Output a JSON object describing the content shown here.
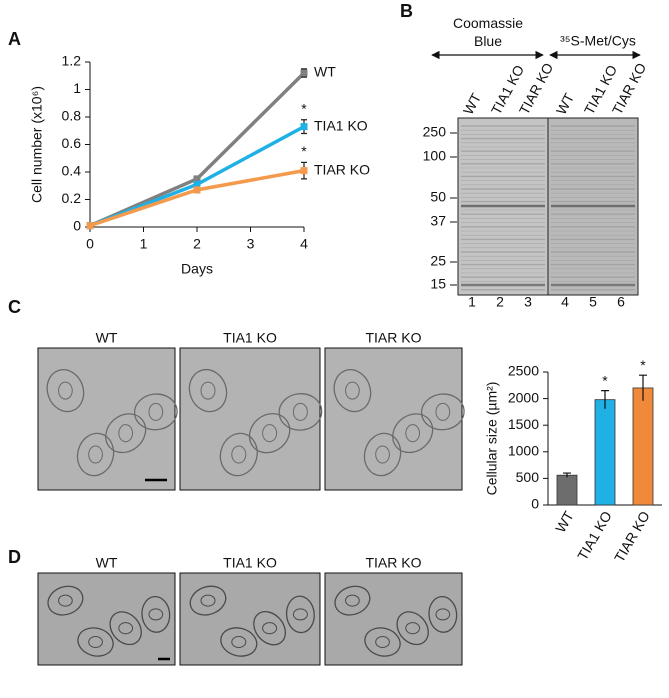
{
  "panels": [
    "A",
    "B",
    "C",
    "D"
  ],
  "chart_data": [
    {
      "type": "line",
      "xlabel": "Days",
      "ylabel": "Cell number (x10⁶)",
      "x": [
        0,
        2,
        4
      ],
      "xlim": [
        0,
        4
      ],
      "xticks": [
        0,
        1,
        2,
        3,
        4
      ],
      "ylim": [
        0,
        1.2
      ],
      "yticks": [
        0,
        0.2,
        0.4,
        0.6,
        0.8,
        1,
        1.2
      ],
      "series": [
        {
          "name": "WT",
          "color": "#808080",
          "values": [
            0.01,
            0.35,
            1.12
          ],
          "errors": [
            0.01,
            0.02,
            0.03
          ]
        },
        {
          "name": "TIA1 KO",
          "color": "#1fb1e6",
          "values": [
            0.01,
            0.31,
            0.73
          ],
          "errors": [
            0.01,
            0.02,
            0.05
          ]
        },
        {
          "name": "TIAR KO",
          "color": "#f39a4c",
          "values": [
            0.01,
            0.27,
            0.41
          ],
          "errors": [
            0.01,
            0.02,
            0.06
          ]
        }
      ],
      "annotations": [
        "*",
        "*"
      ]
    },
    {
      "type": "bar",
      "ylabel": "Cellular size (µm²)",
      "categories": [
        "WT",
        "TIA1 KO",
        "TIAR KO"
      ],
      "values": [
        560,
        1980,
        2200
      ],
      "errors": [
        40,
        170,
        240
      ],
      "colors": [
        "#6d6d6d",
        "#1fb1e6",
        "#f08a3a"
      ],
      "ylim": [
        0,
        2500
      ],
      "yticks": [
        0,
        500,
        1000,
        1500,
        2000,
        2500
      ],
      "annotations": [
        "*",
        "*"
      ]
    }
  ],
  "gel": {
    "stain_left": "Coomassie Blue",
    "stain_right": "³⁵S-Met/Cys",
    "lanes": [
      "WT",
      "TIA1 KO",
      "TIAR KO",
      "WT",
      "TIA1 KO",
      "TIAR KO"
    ],
    "lane_numbers": [
      "1",
      "2",
      "3",
      "4",
      "5",
      "6"
    ],
    "markers": [
      "250",
      "100",
      "50",
      "37",
      "25",
      "15"
    ]
  },
  "micrographs_c": [
    "WT",
    "TIA1 KO",
    "TIAR KO"
  ],
  "micrographs_d": [
    "WT",
    "TIA1 KO",
    "TIAR KO"
  ]
}
